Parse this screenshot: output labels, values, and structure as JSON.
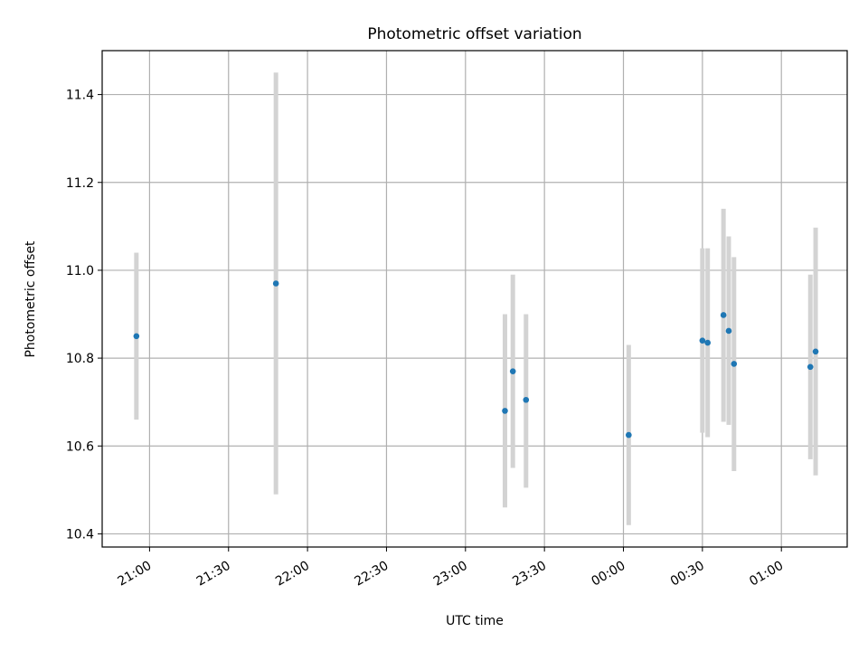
{
  "chart_data": {
    "type": "scatter",
    "title": "Photometric offset variation",
    "xlabel": "UTC time",
    "ylabel": "Photometric offset",
    "xlim": [
      "20:42",
      "01:25"
    ],
    "ylim": [
      10.37,
      11.5
    ],
    "x_ticks": [
      "21:00",
      "21:30",
      "22:00",
      "22:30",
      "23:00",
      "23:30",
      "00:00",
      "00:30",
      "01:00"
    ],
    "y_ticks": [
      "10.4",
      "10.6",
      "10.8",
      "11.0",
      "11.2",
      "11.4"
    ],
    "grid": true,
    "colors": {
      "points": "#1f77b4",
      "error_bars": "#d3d3d3",
      "grid": "#b0b0b0"
    },
    "points": [
      {
        "time": "20:55",
        "value": 10.85,
        "low": 10.66,
        "high": 11.04
      },
      {
        "time": "21:48",
        "value": 10.97,
        "low": 10.49,
        "high": 11.45
      },
      {
        "time": "23:15",
        "value": 10.68,
        "low": 10.46,
        "high": 10.9
      },
      {
        "time": "23:18",
        "value": 10.77,
        "low": 10.55,
        "high": 10.99
      },
      {
        "time": "23:23",
        "value": 10.705,
        "low": 10.505,
        "high": 10.9
      },
      {
        "time": "00:02",
        "value": 10.625,
        "low": 10.42,
        "high": 10.83
      },
      {
        "time": "00:30",
        "value": 10.84,
        "low": 10.63,
        "high": 11.05
      },
      {
        "time": "00:32",
        "value": 10.835,
        "low": 10.62,
        "high": 11.05
      },
      {
        "time": "00:38",
        "value": 10.898,
        "low": 10.655,
        "high": 11.14
      },
      {
        "time": "00:40",
        "value": 10.862,
        "low": 10.648,
        "high": 11.077
      },
      {
        "time": "00:42",
        "value": 10.787,
        "low": 10.543,
        "high": 11.03
      },
      {
        "time": "01:11",
        "value": 10.78,
        "low": 10.57,
        "high": 10.99
      },
      {
        "time": "01:13",
        "value": 10.815,
        "low": 10.533,
        "high": 11.097
      }
    ]
  }
}
